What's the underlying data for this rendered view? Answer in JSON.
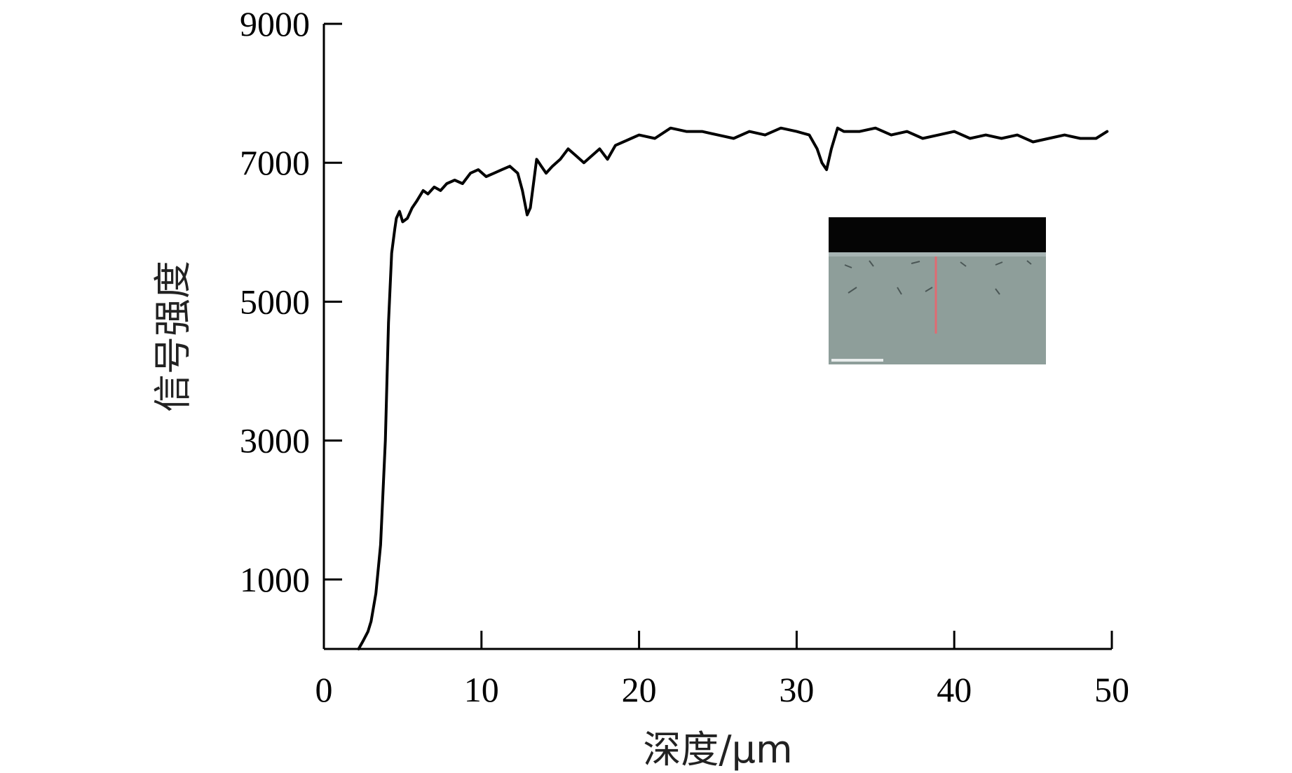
{
  "chart_data": {
    "type": "line",
    "xlabel": "深度/μm",
    "ylabel": "信号强度",
    "xlim": [
      0,
      50
    ],
    "ylim": [
      0,
      9000
    ],
    "x_ticks": [
      0,
      10,
      20,
      30,
      40,
      50
    ],
    "y_ticks": [
      1000,
      3000,
      5000,
      7000,
      9000
    ],
    "grid": false,
    "series": [
      {
        "color": "#000000",
        "x": [
          2.2,
          2.5,
          2.8,
          3.0,
          3.3,
          3.6,
          3.9,
          4.1,
          4.3,
          4.5,
          4.6,
          4.8,
          5.0,
          5.3,
          5.6,
          5.9,
          6.3,
          6.6,
          7.0,
          7.4,
          7.8,
          8.3,
          8.8,
          9.3,
          9.8,
          10.3,
          10.8,
          11.3,
          11.8,
          12.3,
          12.6,
          12.9,
          13.1,
          13.3,
          13.5,
          13.8,
          14.1,
          14.5,
          15.0,
          15.5,
          16.0,
          16.5,
          17.0,
          17.5,
          18.0,
          18.5,
          19.0,
          19.5,
          20.0,
          21.0,
          22.0,
          23.0,
          24.0,
          25.0,
          26.0,
          27.0,
          28.0,
          29.0,
          30.0,
          30.8,
          31.3,
          31.6,
          31.9,
          32.2,
          32.6,
          33.0,
          34.0,
          35.0,
          36.0,
          37.0,
          38.0,
          39.0,
          40.0,
          41.0,
          42.0,
          43.0,
          44.0,
          45.0,
          46.0,
          47.0,
          48.0,
          49.0,
          49.7
        ],
        "y": [
          0,
          120,
          250,
          400,
          800,
          1500,
          3000,
          4700,
          5700,
          6050,
          6200,
          6300,
          6150,
          6200,
          6350,
          6450,
          6600,
          6550,
          6650,
          6600,
          6700,
          6750,
          6700,
          6850,
          6900,
          6800,
          6850,
          6900,
          6950,
          6850,
          6600,
          6250,
          6350,
          6700,
          7050,
          6950,
          6850,
          6950,
          7050,
          7200,
          7100,
          7000,
          7100,
          7200,
          7050,
          7250,
          7300,
          7350,
          7400,
          7350,
          7500,
          7450,
          7450,
          7400,
          7350,
          7450,
          7400,
          7500,
          7450,
          7400,
          7200,
          7000,
          6900,
          7200,
          7500,
          7450,
          7450,
          7500,
          7400,
          7450,
          7350,
          7400,
          7450,
          7350,
          7400,
          7350,
          7400,
          7300,
          7350,
          7400,
          7350,
          7350,
          7450
        ]
      }
    ]
  }
}
